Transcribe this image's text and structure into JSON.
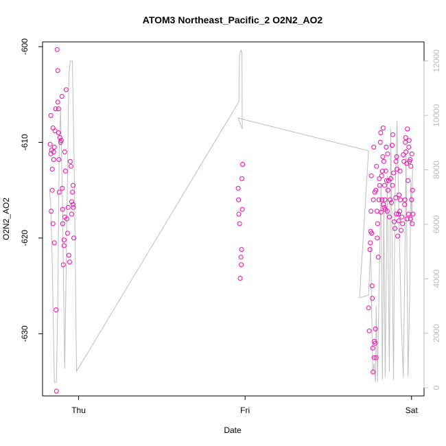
{
  "chart_data": {
    "type": "scatter",
    "title": "ATOM3 Northeast_Pacific_2 O2N2_AO2",
    "xlabel": "Date",
    "ylabel": "O2N2_AO2",
    "x_tick_labels": [
      "Thu",
      "Fri",
      "Sat"
    ],
    "x_ticks_hours": [
      0,
      24,
      48
    ],
    "xlim_hours": [
      -5.2,
      49.8
    ],
    "ylim_left": [
      -636.5,
      -599.5
    ],
    "yticks_left": [
      -600,
      -610,
      -620,
      -630
    ],
    "ylim_right": [
      -300,
      12700
    ],
    "yticks_right": [
      0,
      2000,
      4000,
      6000,
      8000,
      10000,
      12000
    ],
    "grid": false,
    "legend": "none",
    "colors": {
      "points": "#ff00aa",
      "altitude_line": "#bebebe",
      "axis": "#000000",
      "right_axis": "#bdbdbd"
    },
    "series": [
      {
        "axis": "left",
        "style": "points",
        "points": [
          [
            -4.1,
            -610.2
          ],
          [
            -4.0,
            -611.2
          ],
          [
            -3.9,
            -610.8
          ],
          [
            -3.8,
            -612.8
          ],
          [
            -3.7,
            -608.5
          ],
          [
            -3.6,
            -611.0
          ],
          [
            -3.5,
            -610.5
          ],
          [
            -4.0,
            -607.2
          ],
          [
            -3.95,
            -617.2
          ],
          [
            -3.8,
            -615.0
          ],
          [
            -3.7,
            -618.5
          ],
          [
            -3.6,
            -611.8
          ],
          [
            -3.5,
            -620.5
          ],
          [
            -3.4,
            -608.8
          ],
          [
            -3.3,
            -606.5
          ],
          [
            -3.25,
            -627.5
          ],
          [
            -3.2,
            -636.0
          ],
          [
            -3.1,
            -600.3
          ],
          [
            -3.0,
            -602.5
          ],
          [
            -3.0,
            -605.8
          ],
          [
            -2.9,
            -606.5
          ],
          [
            -2.9,
            -609.0
          ],
          [
            -2.85,
            -611.8
          ],
          [
            -2.8,
            -615.2
          ],
          [
            -2.7,
            -609.5
          ],
          [
            -2.6,
            -610.0
          ],
          [
            -2.5,
            -609.8
          ],
          [
            -2.4,
            -605.2
          ],
          [
            -2.35,
            -614.8
          ],
          [
            -2.3,
            -617.0
          ],
          [
            -2.3,
            -618.5
          ],
          [
            -2.2,
            -622.8
          ],
          [
            -2.1,
            -620.2
          ],
          [
            -2.1,
            -620.8
          ],
          [
            -2.0,
            -617.8
          ],
          [
            -2.0,
            -611.0
          ],
          [
            -1.9,
            -613.0
          ],
          [
            -1.8,
            -604.5
          ],
          [
            -1.7,
            -618.0
          ],
          [
            -1.6,
            -619.5
          ],
          [
            -1.5,
            -616.8
          ],
          [
            -1.4,
            -621.8
          ],
          [
            -1.3,
            -622.5
          ],
          [
            -1.2,
            -612.0
          ],
          [
            -1.1,
            -612.5
          ],
          [
            -1.0,
            -616.2
          ],
          [
            -1.0,
            -617.5
          ],
          [
            -0.9,
            -615.2
          ],
          [
            -0.8,
            -616.5
          ],
          [
            -0.8,
            -614.5
          ],
          [
            -0.75,
            -616.8
          ],
          [
            -0.7,
            -620.0
          ],
          [
            23.0,
            -614.8
          ],
          [
            23.05,
            -616.0
          ],
          [
            23.1,
            -617.5
          ],
          [
            23.2,
            -618.5
          ],
          [
            23.3,
            -624.2
          ],
          [
            23.4,
            -622.0
          ],
          [
            23.45,
            -622.8
          ],
          [
            23.5,
            -621.2
          ],
          [
            23.55,
            -613.8
          ],
          [
            23.6,
            -617.0
          ],
          [
            23.65,
            -612.3
          ],
          [
            41.8,
            -627.3
          ],
          [
            41.9,
            -629.7
          ],
          [
            42.0,
            -621.2
          ],
          [
            42.05,
            -620.5
          ],
          [
            42.1,
            -619.3
          ],
          [
            42.15,
            -617.2
          ],
          [
            42.2,
            -613.5
          ],
          [
            42.25,
            -619.5
          ],
          [
            42.3,
            -625.0
          ],
          [
            42.35,
            -626.3
          ],
          [
            42.4,
            -631.5
          ],
          [
            42.45,
            -634.0
          ],
          [
            42.5,
            -616.0
          ],
          [
            42.55,
            -610.5
          ],
          [
            42.6,
            -632.5
          ],
          [
            42.65,
            -630.8
          ],
          [
            42.7,
            -615.2
          ],
          [
            42.75,
            -631.0
          ],
          [
            42.8,
            -629.5
          ],
          [
            42.85,
            -615.0
          ],
          [
            42.9,
            -632.5
          ],
          [
            42.95,
            -612.5
          ],
          [
            43.0,
            -617.2
          ],
          [
            43.05,
            -620.0
          ],
          [
            43.1,
            -618.5
          ],
          [
            43.2,
            -622.0
          ],
          [
            43.3,
            -616.0
          ],
          [
            43.35,
            -613.8
          ],
          [
            43.4,
            -614.5
          ],
          [
            43.5,
            -610.0
          ],
          [
            43.55,
            -609.0
          ],
          [
            43.6,
            -617.3
          ],
          [
            43.7,
            -613.5
          ],
          [
            43.75,
            -616.0
          ],
          [
            43.8,
            -613.0
          ],
          [
            43.85,
            -611.5
          ],
          [
            43.9,
            -608.5
          ],
          [
            43.95,
            -616.5
          ],
          [
            44.0,
            -612.0
          ],
          [
            44.05,
            -616.8
          ],
          [
            44.1,
            -614.5
          ],
          [
            44.15,
            -616.0
          ],
          [
            44.2,
            -617.0
          ],
          [
            44.3,
            -613.0
          ],
          [
            44.35,
            -610.5
          ],
          [
            44.4,
            -614.0
          ],
          [
            44.5,
            -617.2
          ],
          [
            44.55,
            -611.2
          ],
          [
            44.6,
            -615.0
          ],
          [
            44.7,
            -614.0
          ],
          [
            44.8,
            -617.8
          ],
          [
            44.9,
            -616.0
          ],
          [
            45.0,
            -613.8
          ],
          [
            45.1,
            -616.3
          ],
          [
            45.2,
            -610.3
          ],
          [
            45.25,
            -614.5
          ],
          [
            45.3,
            -609.2
          ],
          [
            45.4,
            -613.2
          ],
          [
            45.5,
            -618.3
          ],
          [
            45.6,
            -619.0
          ],
          [
            45.7,
            -615.8
          ],
          [
            45.75,
            -612.0
          ],
          [
            45.8,
            -617.5
          ],
          [
            45.85,
            -611.5
          ],
          [
            45.9,
            -612.8
          ],
          [
            46.0,
            -619.8
          ],
          [
            46.1,
            -617.5
          ],
          [
            46.15,
            -618.2
          ],
          [
            46.2,
            -615.5
          ],
          [
            46.3,
            -617.2
          ],
          [
            46.35,
            -613.0
          ],
          [
            46.4,
            -616.0
          ],
          [
            46.5,
            -619.2
          ],
          [
            46.6,
            -617.8
          ],
          [
            46.7,
            -618.5
          ],
          [
            46.8,
            -611.3
          ],
          [
            46.9,
            -612.0
          ],
          [
            47.0,
            -616.5
          ],
          [
            47.05,
            -616.0
          ],
          [
            47.1,
            -610.0
          ],
          [
            47.15,
            -609.5
          ],
          [
            47.2,
            -611.0
          ],
          [
            47.3,
            -612.2
          ],
          [
            47.35,
            -618.0
          ],
          [
            47.4,
            -608.6
          ],
          [
            47.5,
            -614.0
          ],
          [
            47.55,
            -617.5
          ],
          [
            47.6,
            -610.5
          ],
          [
            47.65,
            -609.8
          ],
          [
            47.7,
            -612.0
          ],
          [
            47.8,
            -611.8
          ],
          [
            47.85,
            -618.0
          ],
          [
            47.9,
            -612.5
          ],
          [
            48.0,
            -616.0
          ],
          [
            48.05,
            -611.2
          ],
          [
            48.1,
            -618.5
          ],
          [
            48.15,
            -615.0
          ],
          [
            48.2,
            -617.5
          ]
        ]
      },
      {
        "axis": "right",
        "style": "line",
        "points": [
          [
            -4.2,
            7300
          ],
          [
            -4.0,
            6600
          ],
          [
            -3.8,
            4500
          ],
          [
            -3.5,
            200
          ],
          [
            -3.2,
            200
          ],
          [
            -3.0,
            3000
          ],
          [
            -2.8,
            8700
          ],
          [
            -2.6,
            10200
          ],
          [
            -2.3,
            6500
          ],
          [
            -2.0,
            700
          ],
          [
            -1.7,
            6000
          ],
          [
            -1.4,
            11500
          ],
          [
            -1.2,
            12000
          ],
          [
            -0.9,
            12000
          ],
          [
            -0.6,
            7500
          ],
          [
            -0.3,
            600
          ],
          [
            23.1,
            10500
          ],
          [
            23.2,
            12200
          ],
          [
            23.4,
            12400
          ],
          [
            23.55,
            12300
          ],
          [
            23.6,
            9500
          ],
          [
            23.0,
            9900
          ],
          [
            41.8,
            8700
          ],
          [
            40.5,
            3300
          ],
          [
            41.8,
            3400
          ],
          [
            42.1,
            5200
          ],
          [
            42.4,
            500
          ],
          [
            42.6,
            900
          ],
          [
            42.8,
            200
          ],
          [
            42.9,
            3000
          ],
          [
            43.1,
            200
          ],
          [
            43.3,
            3500
          ],
          [
            43.6,
            7500
          ],
          [
            43.8,
            300
          ],
          [
            44.0,
            6500
          ],
          [
            44.2,
            400
          ],
          [
            44.5,
            7800
          ],
          [
            44.8,
            600
          ],
          [
            45.0,
            9500
          ],
          [
            45.2,
            5000
          ],
          [
            45.4,
            300
          ],
          [
            45.6,
            6800
          ],
          [
            45.9,
            9800
          ],
          [
            46.2,
            6200
          ],
          [
            46.5,
            2600
          ],
          [
            46.8,
            400
          ],
          [
            47.0,
            3800
          ],
          [
            47.2,
            8600
          ],
          [
            47.5,
            400
          ],
          [
            47.7,
            3000
          ],
          [
            47.9,
            7600
          ],
          [
            48.05,
            6000
          ],
          [
            48.15,
            8200
          ]
        ]
      }
    ]
  }
}
